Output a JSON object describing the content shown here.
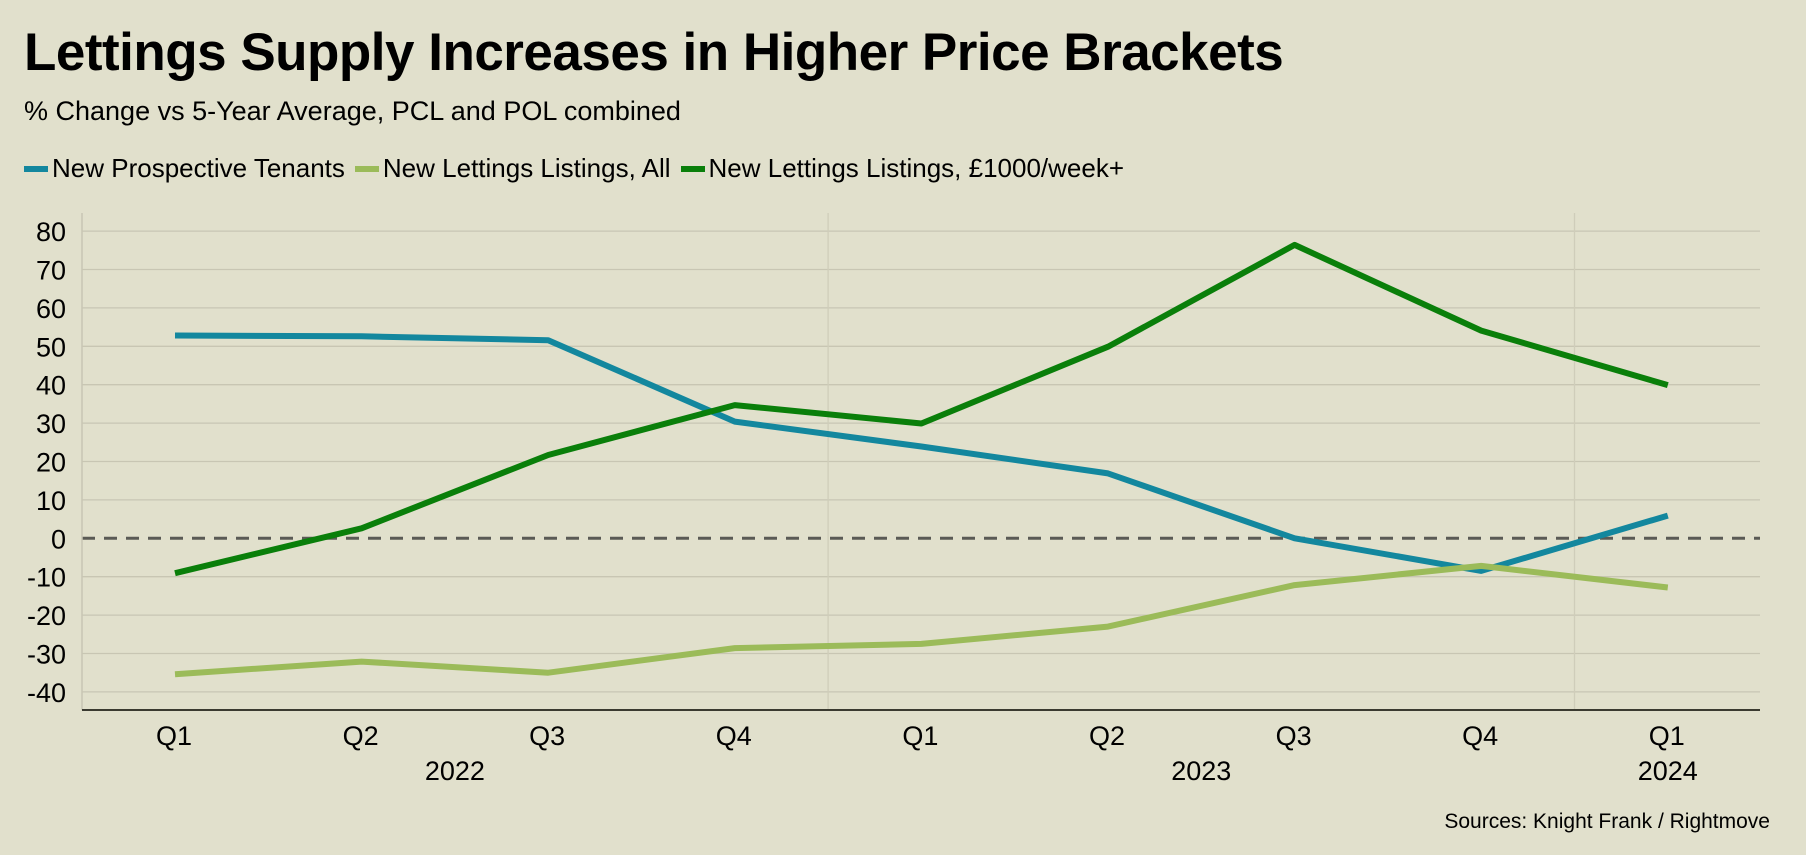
{
  "title": "Lettings Supply Increases in Higher Price Brackets",
  "subtitle": "% Change vs 5-Year Average, PCL and POL combined",
  "source": "Sources: Knight Frank / Rightmove",
  "chart_data": {
    "type": "line",
    "title": "Lettings Supply Increases in Higher Price Brackets",
    "subtitle": "% Change vs 5-Year Average, PCL and POL combined",
    "xlabel": "",
    "ylabel": "",
    "ylim": [
      -45,
      85
    ],
    "yticks": [
      80,
      70,
      60,
      50,
      40,
      30,
      20,
      10,
      0,
      -10,
      -20,
      -30,
      -40
    ],
    "grid": true,
    "zero_line": "dashed",
    "legend_position": "top-left",
    "categories": [
      "Q1",
      "Q2",
      "Q3",
      "Q4",
      "Q1",
      "Q2",
      "Q3",
      "Q4",
      "Q1"
    ],
    "year_groups": [
      {
        "label": "2022",
        "start": 0,
        "end": 3
      },
      {
        "label": "2023",
        "start": 4,
        "end": 7
      },
      {
        "label": "2024",
        "start": 8,
        "end": 8
      }
    ],
    "series": [
      {
        "name": "New Prospective Tenants",
        "color": "#13879e",
        "values": [
          52.8,
          52.6,
          51.6,
          30.4,
          23.9,
          16.9,
          0.0,
          -8.5,
          5.9
        ]
      },
      {
        "name": "New Lettings Listings, All",
        "color": "#9bbb59",
        "values": [
          -35.4,
          -32.1,
          -35.0,
          -28.6,
          -27.5,
          -23.0,
          -12.2,
          -7.2,
          -12.8
        ]
      },
      {
        "name": "New Lettings Listings, £1000/week+",
        "color": "#0a7f0a",
        "values": [
          -9.1,
          2.6,
          21.7,
          34.7,
          29.9,
          49.9,
          76.4,
          54.1,
          39.9
        ]
      }
    ]
  }
}
